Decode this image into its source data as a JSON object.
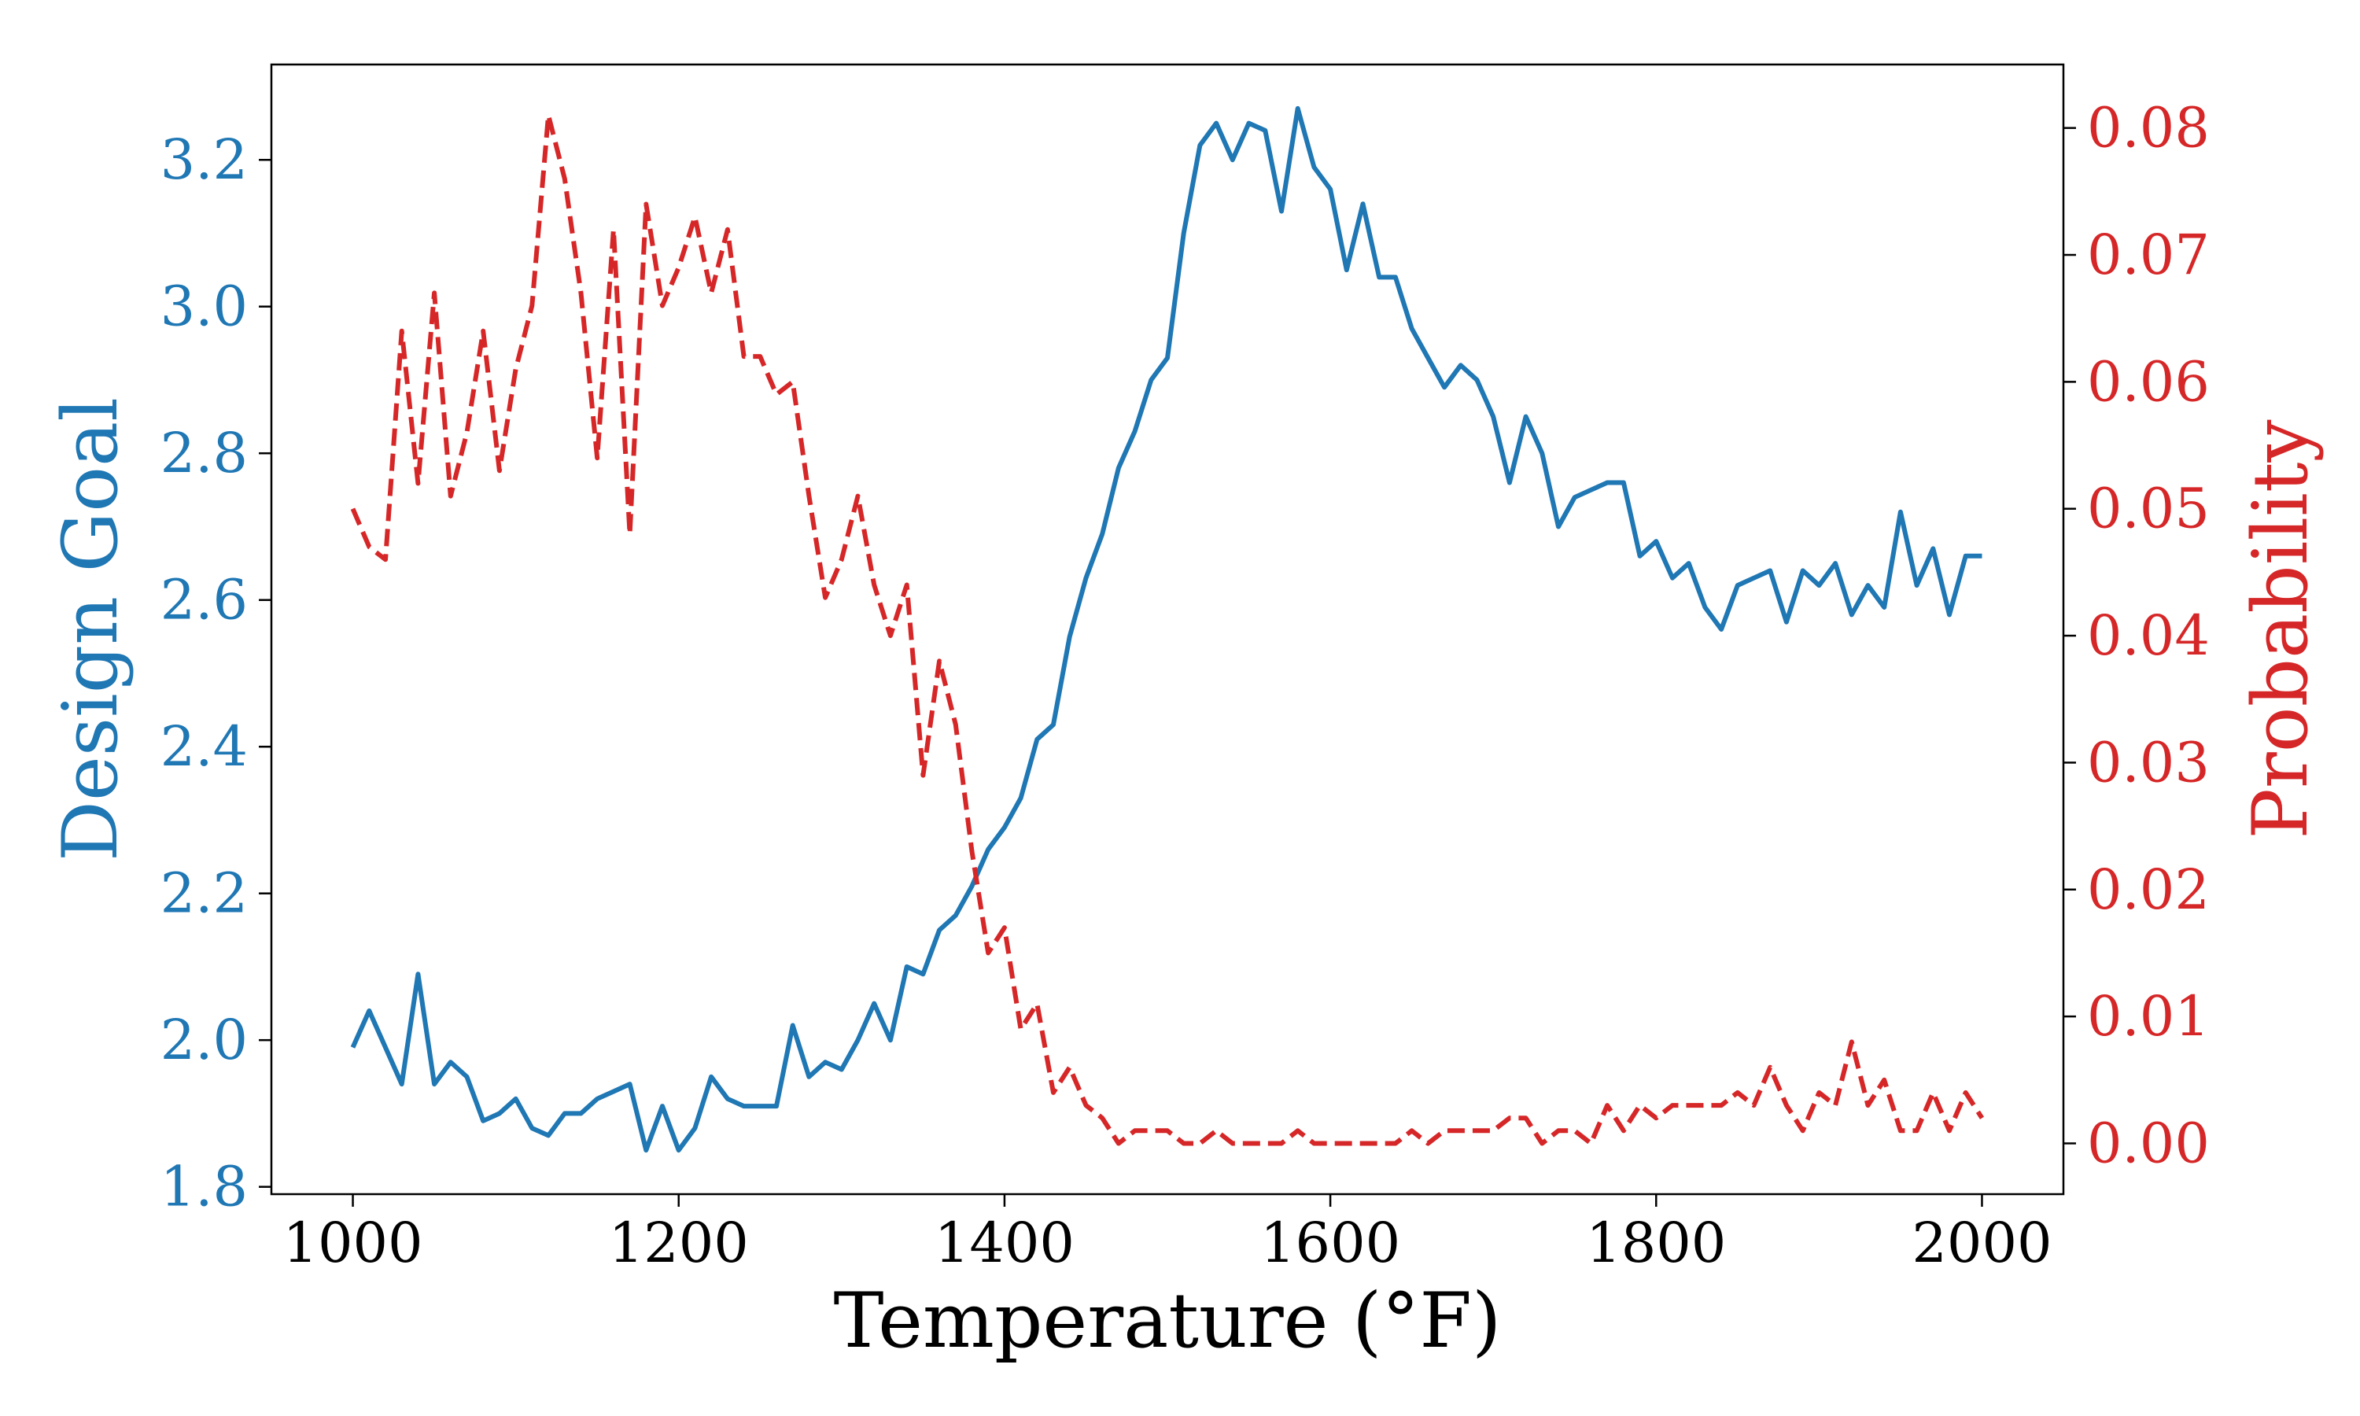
{
  "chart_data": {
    "type": "line",
    "xlabel": "Temperature (°F)",
    "ylabel_left": "Design Goal",
    "ylabel_right": "Probability",
    "x_ticks": [
      "1000",
      "1200",
      "1400",
      "1600",
      "1800",
      "2000"
    ],
    "y_left_ticks": [
      "1.8",
      "2.0",
      "2.2",
      "2.4",
      "2.6",
      "2.8",
      "3.0",
      "3.2"
    ],
    "y_right_ticks": [
      "0.00",
      "0.01",
      "0.02",
      "0.03",
      "0.04",
      "0.05",
      "0.06",
      "0.07",
      "0.08"
    ],
    "xlim": [
      950,
      2050
    ],
    "ylim_left": [
      1.79,
      3.33
    ],
    "ylim_right": [
      -0.004,
      0.085
    ],
    "grid": false,
    "colors": {
      "left": "#1f77b4",
      "right": "#d62728"
    },
    "x": [
      1000,
      1010,
      1020,
      1030,
      1040,
      1050,
      1060,
      1070,
      1080,
      1090,
      1100,
      1110,
      1120,
      1130,
      1140,
      1150,
      1160,
      1170,
      1180,
      1190,
      1200,
      1210,
      1220,
      1230,
      1240,
      1250,
      1260,
      1270,
      1280,
      1290,
      1300,
      1310,
      1320,
      1330,
      1340,
      1350,
      1360,
      1370,
      1380,
      1390,
      1400,
      1410,
      1420,
      1430,
      1440,
      1450,
      1460,
      1470,
      1480,
      1490,
      1500,
      1510,
      1520,
      1530,
      1540,
      1550,
      1560,
      1570,
      1580,
      1590,
      1600,
      1610,
      1620,
      1630,
      1640,
      1650,
      1660,
      1670,
      1680,
      1690,
      1700,
      1710,
      1720,
      1730,
      1740,
      1750,
      1760,
      1770,
      1780,
      1790,
      1800,
      1810,
      1820,
      1830,
      1840,
      1850,
      1860,
      1870,
      1880,
      1890,
      1900,
      1910,
      1920,
      1930,
      1940,
      1950,
      1960,
      1970,
      1980,
      1990,
      2000
    ],
    "series": [
      {
        "axis": "left",
        "style": "solid",
        "values": [
          1.99,
          2.04,
          1.99,
          1.94,
          2.09,
          1.94,
          1.97,
          1.95,
          1.89,
          1.9,
          1.92,
          1.88,
          1.87,
          1.9,
          1.9,
          1.92,
          1.93,
          1.94,
          1.85,
          1.91,
          1.85,
          1.88,
          1.95,
          1.92,
          1.91,
          1.91,
          1.91,
          2.02,
          1.95,
          1.97,
          1.96,
          2.0,
          2.05,
          2.0,
          2.1,
          2.09,
          2.15,
          2.17,
          2.21,
          2.26,
          2.29,
          2.33,
          2.41,
          2.43,
          2.55,
          2.63,
          2.69,
          2.78,
          2.83,
          2.9,
          2.93,
          3.1,
          3.22,
          3.25,
          3.2,
          3.25,
          3.24,
          3.13,
          3.27,
          3.19,
          3.16,
          3.05,
          3.14,
          3.04,
          3.04,
          2.97,
          2.93,
          2.89,
          2.92,
          2.9,
          2.85,
          2.76,
          2.85,
          2.8,
          2.7,
          2.74,
          2.75,
          2.76,
          2.76,
          2.66,
          2.68,
          2.63,
          2.65,
          2.59,
          2.56,
          2.62,
          2.63,
          2.64,
          2.57,
          2.64,
          2.62,
          2.65,
          2.58,
          2.62,
          2.59,
          2.72,
          2.62,
          2.67,
          2.58,
          2.66,
          2.66
        ]
      },
      {
        "axis": "right",
        "style": "dashed",
        "values": [
          0.05,
          0.047,
          0.046,
          0.064,
          0.052,
          0.067,
          0.051,
          0.056,
          0.064,
          0.053,
          0.061,
          0.066,
          0.081,
          0.076,
          0.067,
          0.054,
          0.072,
          0.048,
          0.074,
          0.066,
          0.069,
          0.073,
          0.067,
          0.072,
          0.062,
          0.062,
          0.059,
          0.06,
          0.051,
          0.043,
          0.046,
          0.051,
          0.044,
          0.04,
          0.044,
          0.029,
          0.038,
          0.033,
          0.023,
          0.015,
          0.017,
          0.009,
          0.011,
          0.004,
          0.006,
          0.003,
          0.002,
          0.0,
          0.001,
          0.001,
          0.001,
          0.0,
          0.0,
          0.001,
          0.0,
          0.0,
          0.0,
          0.0,
          0.001,
          0.0,
          0.0,
          0.0,
          0.0,
          0.0,
          0.0,
          0.001,
          0.0,
          0.001,
          0.001,
          0.001,
          0.001,
          0.002,
          0.002,
          0.0,
          0.001,
          0.001,
          0.0,
          0.003,
          0.001,
          0.003,
          0.002,
          0.003,
          0.003,
          0.003,
          0.003,
          0.004,
          0.003,
          0.006,
          0.003,
          0.001,
          0.004,
          0.003,
          0.008,
          0.003,
          0.005,
          0.001,
          0.001,
          0.004,
          0.001,
          0.004,
          0.002
        ]
      }
    ]
  }
}
